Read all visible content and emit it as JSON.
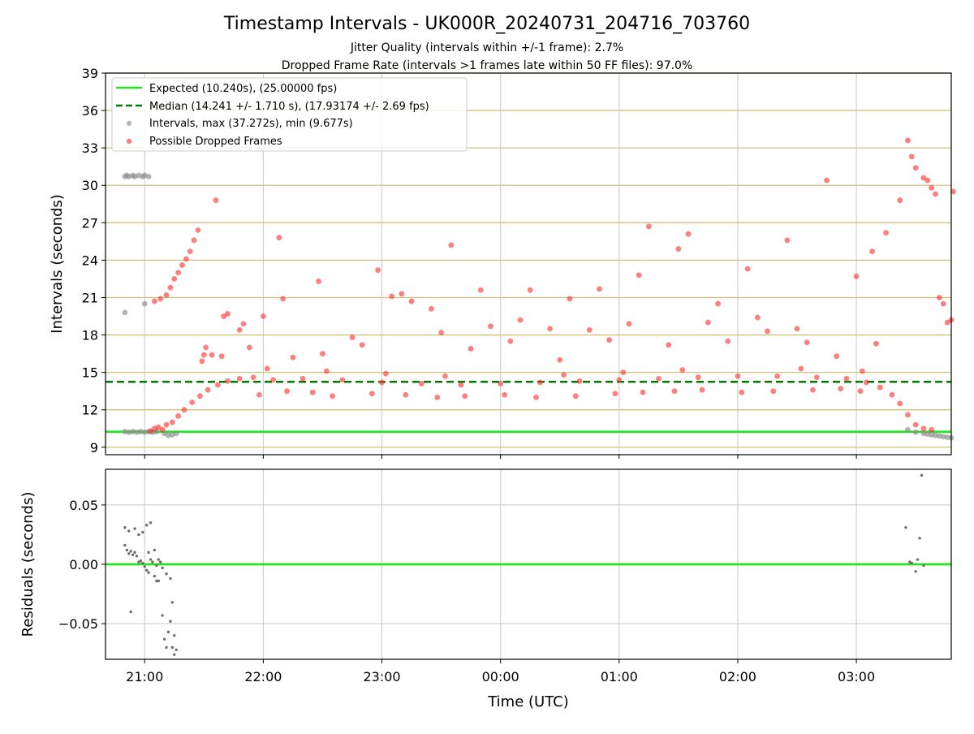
{
  "chart_data": [
    {
      "type": "scatter",
      "title": "Timestamp Intervals - UK000R_20240731_204716_703760",
      "subtitle_lines": [
        "Jitter Quality (intervals within +/-1 frame): 2.7%",
        "Dropped Frame Rate (intervals >1 frames late within 50 FF files): 97.0%"
      ],
      "xlabel": "",
      "ylabel": "Intervals (seconds)",
      "xlim_hours": [
        20.67,
        27.8
      ],
      "ylim": [
        8.4,
        39
      ],
      "yticks": [
        9,
        12,
        15,
        18,
        21,
        24,
        27,
        30,
        33,
        36,
        39
      ],
      "ytick_labels": [
        "9",
        "12",
        "15",
        "18",
        "21",
        "24",
        "27",
        "30",
        "33",
        "36",
        "39"
      ],
      "grid": true,
      "hlines": [
        12,
        15,
        18,
        21,
        24,
        27,
        30,
        33,
        36,
        39
      ],
      "legend_position": "upper-left",
      "colors": {
        "expected": "#22e422",
        "median": "#007a00",
        "intervals": "#8a8a8a",
        "dropped": "#ff2a2a",
        "hline": "#d2bf7e",
        "grid": "#c8c8c8"
      },
      "legend": [
        {
          "label": "Expected (10.240s), (25.00000 fps)",
          "style": "solid-line"
        },
        {
          "label": "Median (14.241 +/- 1.710 s), (17.93174 +/- 2.69 fps)",
          "style": "dashed-line"
        },
        {
          "label": "Intervals, max (37.272s), min (9.677s)",
          "style": "gray-dot"
        },
        {
          "label": "Possible Dropped Frames",
          "style": "red-dot"
        }
      ],
      "series": [
        {
          "name": "Expected (10.240s), (25.00000 fps)",
          "kind": "hline",
          "y": 10.24
        },
        {
          "name": "Median (14.241 +/- 1.710 s), (17.93174 +/- 2.69 fps)",
          "kind": "hline-dashed",
          "y": 14.241
        },
        {
          "name": "Intervals, max (37.272s), min (9.677s)",
          "kind": "scatter",
          "x": [
            "20:50",
            "20:51",
            "20:52",
            "20:54",
            "20:55",
            "20:57",
            "20:59",
            "21:00",
            "21:02",
            "20:50",
            "20:52",
            "20:54",
            "20:56",
            "20:58",
            "21:00",
            "21:02",
            "21:04",
            "21:06",
            "20:50",
            "21:00",
            "21:10",
            "21:12",
            "21:14",
            "21:16",
            "03:26",
            "03:30",
            "03:34",
            "03:36",
            "03:38",
            "03:40",
            "03:42",
            "03:44",
            "03:46",
            "03:48"
          ],
          "y": [
            30.7,
            30.8,
            30.7,
            30.8,
            30.7,
            30.8,
            30.7,
            30.8,
            30.7,
            10.25,
            10.2,
            10.25,
            10.2,
            10.25,
            10.2,
            10.25,
            10.2,
            10.25,
            19.8,
            20.5,
            10.1,
            9.95,
            10.0,
            10.1,
            10.4,
            10.2,
            10.1,
            10.05,
            10.0,
            9.95,
            9.9,
            9.85,
            9.8,
            9.75
          ]
        },
        {
          "name": "Possible Dropped Frames",
          "kind": "scatter",
          "x": [
            "21:03",
            "21:05",
            "21:07",
            "21:09",
            "21:11",
            "21:14",
            "21:17",
            "21:20",
            "21:24",
            "21:28",
            "21:32",
            "21:37",
            "21:42",
            "21:48",
            "21:55",
            "22:05",
            "22:20",
            "22:40",
            "23:00",
            "23:20",
            "23:40",
            "00:00",
            "00:20",
            "00:40",
            "01:00",
            "01:20",
            "01:40",
            "02:00",
            "02:20",
            "02:40",
            "02:55",
            "03:05",
            "03:12",
            "03:18",
            "03:22",
            "03:26",
            "03:30",
            "03:34",
            "03:38",
            "21:05",
            "21:08",
            "21:11",
            "21:13",
            "21:15",
            "21:17",
            "21:19",
            "21:21",
            "21:23",
            "21:25",
            "21:27",
            "21:29",
            "21:31",
            "21:34",
            "21:36",
            "21:39",
            "21:42",
            "21:48",
            "21:53",
            "22:00",
            "22:08",
            "22:15",
            "22:28",
            "22:45",
            "22:58",
            "23:10",
            "23:25",
            "23:35",
            "23:45",
            "23:55",
            "00:05",
            "00:15",
            "00:30",
            "00:45",
            "00:50",
            "01:05",
            "01:10",
            "01:25",
            "01:35",
            "01:45",
            "01:55",
            "02:05",
            "02:15",
            "02:25",
            "02:35",
            "02:45",
            "03:00",
            "03:08",
            "03:15",
            "03:22",
            "03:26",
            "03:28",
            "03:30",
            "03:34",
            "03:36",
            "03:38",
            "03:40",
            "03:42",
            "03:44",
            "03:46",
            "03:48",
            "03:49",
            "21:30",
            "21:40",
            "21:50",
            "22:10",
            "22:30",
            "22:50",
            "23:05",
            "23:15",
            "23:30",
            "23:50",
            "00:10",
            "00:25",
            "00:35",
            "00:55",
            "01:15",
            "01:30",
            "01:50",
            "02:10",
            "02:30",
            "02:50",
            "03:10",
            "21:58",
            "22:12",
            "22:25",
            "22:35",
            "22:55",
            "23:12",
            "23:28",
            "23:42",
            "00:02",
            "00:18",
            "00:38",
            "00:58",
            "01:12",
            "01:28",
            "01:42",
            "02:02",
            "02:18",
            "02:38",
            "02:52",
            "03:02",
            "22:02",
            "22:32",
            "23:02",
            "23:32",
            "00:32",
            "01:02",
            "01:32",
            "02:32",
            "03:03"
          ],
          "y": [
            10.3,
            10.5,
            10.6,
            10.4,
            10.8,
            11.0,
            11.5,
            12.0,
            12.6,
            13.1,
            13.6,
            14.0,
            14.3,
            14.5,
            14.6,
            14.4,
            14.5,
            14.4,
            14.2,
            14.1,
            14.0,
            14.1,
            14.2,
            14.3,
            14.4,
            14.5,
            14.6,
            14.7,
            14.7,
            14.6,
            14.5,
            14.2,
            13.8,
            13.2,
            12.5,
            11.6,
            10.8,
            10.5,
            10.4,
            20.7,
            20.9,
            21.2,
            21.8,
            22.5,
            23.0,
            23.6,
            24.1,
            24.7,
            25.6,
            26.4,
            15.9,
            17.0,
            16.4,
            28.8,
            16.3,
            19.7,
            18.4,
            17.0,
            19.5,
            25.8,
            16.2,
            22.3,
            17.8,
            23.2,
            21.3,
            20.1,
            25.2,
            16.9,
            18.7,
            17.5,
            21.6,
            16.0,
            18.4,
            21.7,
            18.9,
            22.8,
            17.2,
            26.1,
            19.0,
            17.5,
            23.3,
            18.3,
            25.6,
            17.4,
            30.4,
            22.7,
            24.7,
            26.2,
            28.8,
            33.6,
            32.3,
            31.4,
            30.6,
            30.4,
            29.8,
            29.3,
            21.0,
            20.5,
            19.0,
            19.2,
            29.5,
            16.4,
            19.5,
            18.9,
            20.9,
            16.5,
            17.2,
            21.1,
            20.7,
            18.2,
            21.6,
            19.2,
            18.5,
            20.9,
            17.6,
            26.7,
            24.9,
            20.5,
            19.4,
            18.5,
            16.3,
            17.3,
            13.2,
            13.5,
            13.4,
            13.1,
            13.3,
            13.2,
            13.0,
            13.1,
            13.2,
            13.0,
            13.1,
            13.3,
            13.4,
            13.5,
            13.6,
            13.4,
            13.5,
            13.6,
            13.7,
            13.5,
            15.3,
            15.1,
            14.9,
            14.7,
            14.8,
            15.0,
            15.2,
            15.3,
            15.1
          ]
        }
      ]
    },
    {
      "type": "scatter",
      "title": "",
      "xlabel": "Time (UTC)",
      "ylabel": "Residuals (seconds)",
      "xlim_hours": [
        20.67,
        27.8
      ],
      "ylim": [
        -0.08,
        0.08
      ],
      "yticks": [
        -0.05,
        0.0,
        0.05
      ],
      "ytick_labels": [
        "−0.05",
        "0.00",
        "0.05"
      ],
      "xticks": [
        "21:00",
        "22:00",
        "23:00",
        "00:00",
        "01:00",
        "02:00",
        "03:00"
      ],
      "grid": true,
      "colors": {
        "zero_line": "#22e422",
        "points": "#6e6e6e",
        "grid": "#c8c8c8"
      },
      "series": [
        {
          "name": "",
          "kind": "hline",
          "y": 0.0
        },
        {
          "name": "",
          "kind": "scatter",
          "x": [
            "20:50",
            "20:51",
            "20:52",
            "20:53",
            "20:54",
            "20:55",
            "20:56",
            "20:57",
            "20:58",
            "20:59",
            "21:00",
            "21:01",
            "21:02",
            "21:03",
            "21:04",
            "21:05",
            "21:06",
            "21:07",
            "21:08",
            "21:09",
            "21:10",
            "21:11",
            "21:12",
            "21:13",
            "21:14",
            "21:15",
            "20:50",
            "20:52",
            "20:55",
            "20:57",
            "20:59",
            "21:01",
            "21:03",
            "21:05",
            "21:07",
            "21:09",
            "21:11",
            "21:13",
            "21:14",
            "21:15",
            "21:16",
            "20:53",
            "21:02",
            "21:06",
            "03:25",
            "03:27",
            "03:28",
            "03:30",
            "03:31",
            "03:32",
            "03:34",
            "03:33"
          ],
          "y": [
            0.016,
            0.012,
            0.009,
            0.011,
            0.008,
            0.01,
            0.007,
            0.002,
            0.003,
            0.001,
            -0.002,
            -0.005,
            -0.007,
            0.004,
            0.002,
            -0.01,
            -0.014,
            -0.014,
            0.002,
            -0.043,
            -0.063,
            -0.07,
            -0.057,
            -0.048,
            -0.07,
            -0.076,
            0.031,
            0.028,
            0.03,
            0.025,
            0.027,
            0.033,
            0.035,
            0.012,
            0.004,
            -0.003,
            -0.008,
            -0.012,
            -0.032,
            -0.06,
            -0.072,
            -0.04,
            0.01,
            -0.001,
            0.031,
            0.002,
            0.001,
            -0.006,
            0.004,
            0.022,
            -0.001,
            0.075
          ]
        }
      ]
    }
  ]
}
